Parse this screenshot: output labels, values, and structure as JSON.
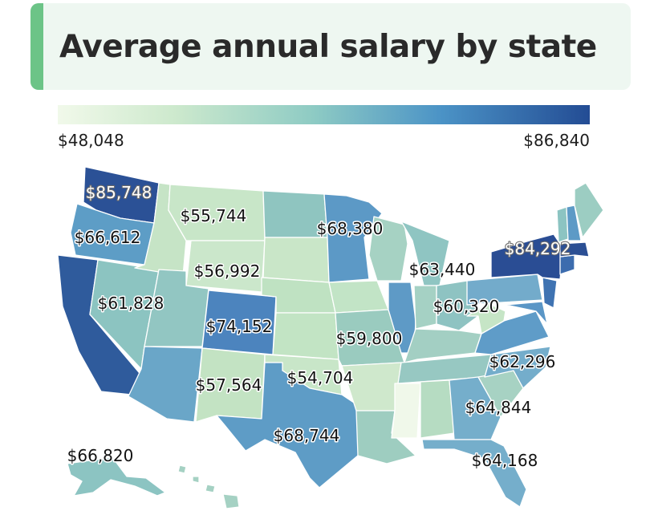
{
  "title": "Average annual salary by state",
  "legend": {
    "min_label": "$48,048",
    "max_label": "$86,840",
    "colors": [
      "#f1f9ea",
      "#cde9cd",
      "#8ecbc4",
      "#4b93c6",
      "#234c94"
    ]
  },
  "labels": {
    "washington": "$85,748",
    "oregon": "$66,612",
    "california": "$61,828",
    "montana": "$55,744",
    "wyoming": "$56,992",
    "colorado": "$74,152",
    "new_mexico": "$57,564",
    "oklahoma": "$54,704",
    "texas": "$68,744",
    "alaska": "$66,820",
    "minnesota": "$68,380",
    "wisconsin": "$63,440",
    "missouri": "$59,800",
    "ohio": "$60,320",
    "new_york": "$84,292",
    "north_carolina": "$62,296",
    "georgia": "$64,844",
    "florida": "$64,168"
  }
}
